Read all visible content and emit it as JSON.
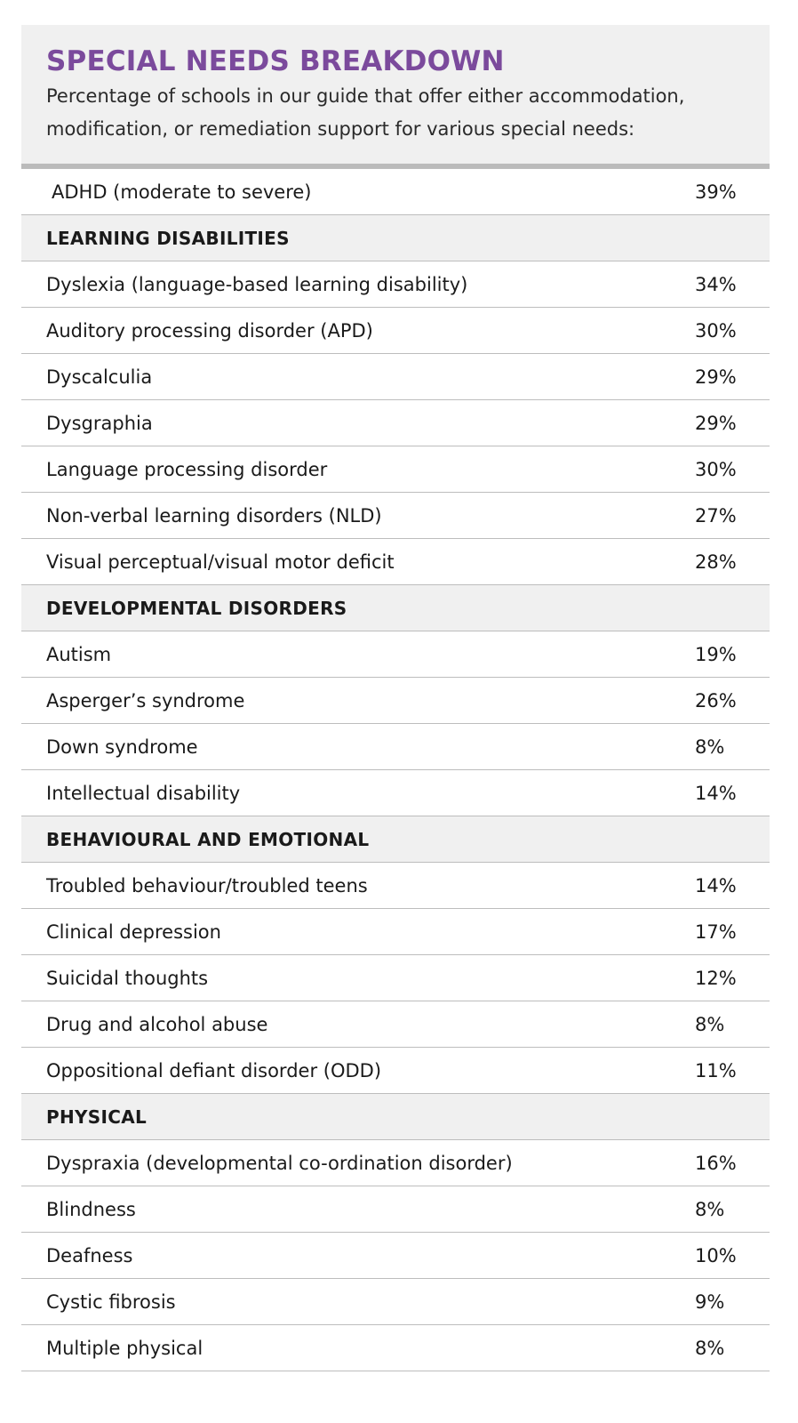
{
  "header": {
    "title": "SPECIAL NEEDS BREAKDOWN",
    "subtitle_line1": "Percentage of schools in our guide that offer either accommodation,",
    "subtitle_line2": "modification, or remediation support for various special needs:"
  },
  "rows": [
    {
      "type": "item",
      "label": "ADHD (moderate to severe)",
      "value": "39%"
    },
    {
      "type": "section",
      "label": "LEARNING DISABILITIES"
    },
    {
      "type": "item",
      "label": "Dyslexia (language-based learning disability)",
      "value": "34%"
    },
    {
      "type": "item",
      "label": "Auditory processing disorder (APD)",
      "value": "30%"
    },
    {
      "type": "item",
      "label": "Dyscalculia",
      "value": "29%"
    },
    {
      "type": "item",
      "label": "Dysgraphia",
      "value": "29%"
    },
    {
      "type": "item",
      "label": "Language processing disorder",
      "value": "30%"
    },
    {
      "type": "item",
      "label": "Non-verbal learning disorders (NLD)",
      "value": "27%"
    },
    {
      "type": "item",
      "label": "Visual perceptual/visual motor deficit",
      "value": "28%"
    },
    {
      "type": "section",
      "label": "DEVELOPMENTAL DISORDERS"
    },
    {
      "type": "item",
      "label": "Autism",
      "value": "19%"
    },
    {
      "type": "item",
      "label": "Asperger’s syndrome",
      "value": "26%"
    },
    {
      "type": "item",
      "label": "Down syndrome",
      "value": "8%"
    },
    {
      "type": "item",
      "label": "Intellectual disability",
      "value": "14%"
    },
    {
      "type": "section",
      "label": "BEHAVIOURAL AND EMOTIONAL"
    },
    {
      "type": "item",
      "label": "Troubled behaviour/troubled teens",
      "value": "14%"
    },
    {
      "type": "item",
      "label": "Clinical depression",
      "value": "17%"
    },
    {
      "type": "item",
      "label": "Suicidal thoughts",
      "value": "12%"
    },
    {
      "type": "item",
      "label": "Drug and alcohol abuse",
      "value": "8%"
    },
    {
      "type": "item",
      "label": "Oppositional defiant disorder (ODD)",
      "value": "11%"
    },
    {
      "type": "section",
      "label": "PHYSICAL"
    },
    {
      "type": "item",
      "label": "Dyspraxia (developmental co-ordination disorder)",
      "value": "16%"
    },
    {
      "type": "item",
      "label": "Blindness",
      "value": "8%"
    },
    {
      "type": "item",
      "label": "Deafness",
      "value": "10%"
    },
    {
      "type": "item",
      "label": "Cystic fibrosis",
      "value": "9%"
    },
    {
      "type": "item",
      "label": "Multiple physical",
      "value": "8%"
    }
  ],
  "colors": {
    "title": "#7b4a9c",
    "header_bg": "#f0f0f0",
    "divider": "#bdbdbd"
  }
}
